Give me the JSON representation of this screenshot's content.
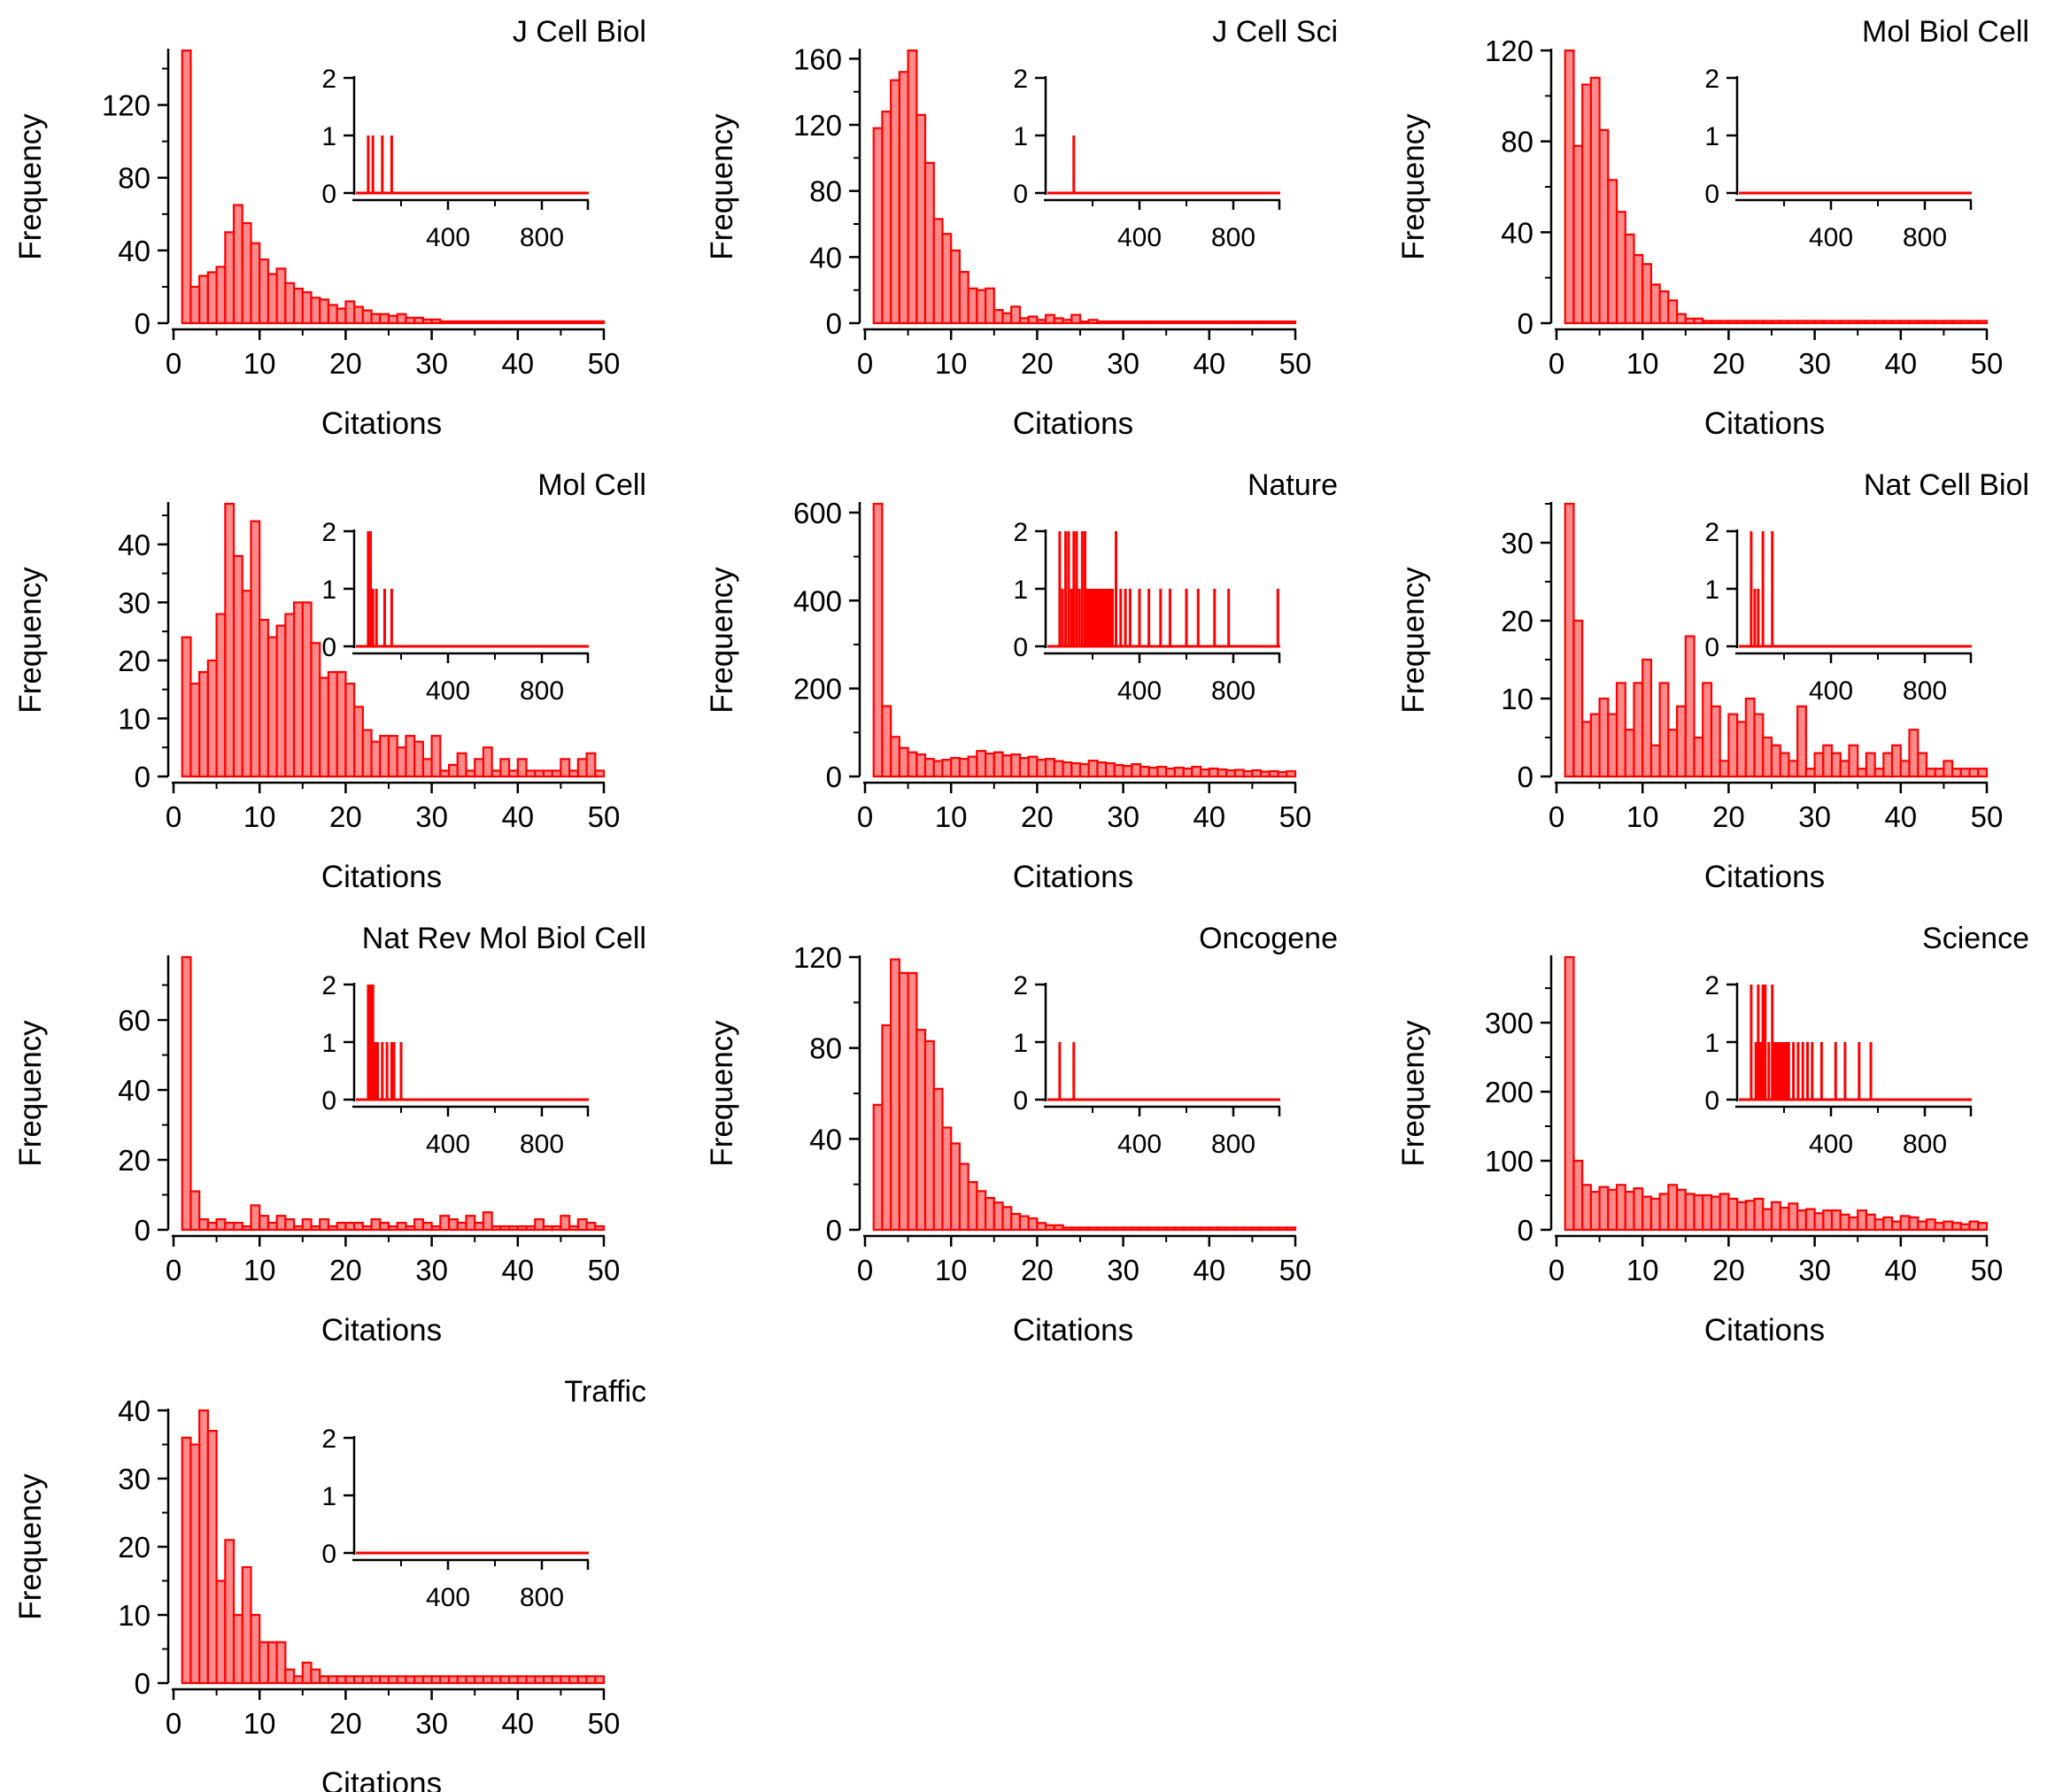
{
  "colors": {
    "bar_fill": "#ff8a8a",
    "bar_stroke": "#ff0000",
    "axis": "#000000"
  },
  "chart_data": [
    {
      "type": "bar",
      "title": "J Cell Biol",
      "xlabel": "Citations",
      "ylabel": "Frequency",
      "xlim": [
        0,
        50
      ],
      "ylim": [
        0,
        150
      ],
      "yticks": [
        0,
        40,
        80,
        120
      ],
      "xticks": [
        0,
        10,
        20,
        30,
        40,
        50
      ],
      "bin_start": 1,
      "bin_width": 1,
      "values": [
        150,
        20,
        26,
        28,
        31,
        50,
        65,
        55,
        44,
        35,
        27,
        30,
        22,
        19,
        17,
        14,
        13,
        10,
        8,
        12,
        9,
        7,
        5,
        5,
        4,
        5,
        3,
        3,
        2,
        2,
        1,
        1,
        1,
        1,
        1,
        1,
        1,
        1,
        1,
        1,
        1,
        1,
        1,
        1,
        1,
        1,
        1,
        1,
        1
      ],
      "inset": {
        "ylim": [
          0,
          2
        ],
        "yticks": [
          0,
          1,
          2
        ],
        "xlim": [
          0,
          1000
        ],
        "xticks": [
          400,
          800
        ],
        "xminor": [
          200,
          600
        ],
        "spikes": [
          [
            60,
            1
          ],
          [
            80,
            1
          ],
          [
            120,
            1
          ],
          [
            160,
            1
          ]
        ]
      }
    },
    {
      "type": "bar",
      "title": "J Cell Sci",
      "xlabel": "Citations",
      "ylabel": "Frequency",
      "xlim": [
        0,
        50
      ],
      "ylim": [
        0,
        165
      ],
      "yticks": [
        0,
        40,
        80,
        120,
        160
      ],
      "xticks": [
        0,
        10,
        20,
        30,
        40,
        50
      ],
      "bin_start": 1,
      "bin_width": 1,
      "values": [
        118,
        128,
        147,
        152,
        165,
        126,
        97,
        63,
        54,
        44,
        31,
        21,
        20,
        21,
        8,
        6,
        10,
        3,
        4,
        2,
        5,
        3,
        2,
        5,
        1,
        2,
        1,
        1,
        1,
        1,
        1,
        1,
        1,
        1,
        1,
        1,
        1,
        1,
        1,
        1,
        1,
        1,
        1,
        1,
        1,
        1,
        1,
        1,
        1
      ],
      "inset": {
        "ylim": [
          0,
          2
        ],
        "yticks": [
          0,
          1,
          2
        ],
        "xlim": [
          0,
          1000
        ],
        "xticks": [
          400,
          800
        ],
        "xminor": [
          200,
          600
        ],
        "spikes": [
          [
            120,
            1
          ]
        ]
      }
    },
    {
      "type": "bar",
      "title": "Mol Biol Cell",
      "xlabel": "Citations",
      "ylabel": "Frequency",
      "xlim": [
        0,
        50
      ],
      "ylim": [
        0,
        120
      ],
      "yticks": [
        0,
        40,
        80,
        120
      ],
      "xticks": [
        0,
        10,
        20,
        30,
        40,
        50
      ],
      "bin_start": 1,
      "bin_width": 1,
      "values": [
        120,
        78,
        105,
        108,
        85,
        63,
        49,
        39,
        30,
        26,
        17,
        14,
        10,
        4,
        2,
        2,
        1,
        1,
        1,
        1,
        1,
        1,
        1,
        1,
        1,
        1,
        1,
        1,
        1,
        1,
        1,
        1,
        1,
        1,
        1,
        1,
        1,
        1,
        1,
        1,
        1,
        1,
        1,
        1,
        1,
        1,
        1,
        1,
        1
      ],
      "inset": {
        "ylim": [
          0,
          2
        ],
        "yticks": [
          0,
          1,
          2
        ],
        "xlim": [
          0,
          1000
        ],
        "xticks": [
          400,
          800
        ],
        "xminor": [
          200,
          600
        ],
        "spikes": []
      }
    },
    {
      "type": "bar",
      "title": "Mol Cell",
      "xlabel": "Citations",
      "ylabel": "Frequency",
      "xlim": [
        0,
        50
      ],
      "ylim": [
        0,
        47
      ],
      "yticks": [
        0,
        10,
        20,
        30,
        40
      ],
      "xticks": [
        0,
        10,
        20,
        30,
        40,
        50
      ],
      "bin_start": 1,
      "bin_width": 1,
      "values": [
        24,
        16,
        18,
        20,
        28,
        47,
        38,
        32,
        44,
        27,
        24,
        26,
        28,
        30,
        30,
        23,
        17,
        18,
        18,
        16,
        12,
        8,
        6,
        7,
        7,
        5,
        7,
        6,
        3,
        7,
        1,
        2,
        4,
        1,
        3,
        5,
        1,
        3,
        1,
        3,
        1,
        1,
        1,
        1,
        3,
        1,
        3,
        4,
        1
      ],
      "inset": {
        "ylim": [
          0,
          2
        ],
        "yticks": [
          0,
          1,
          2
        ],
        "xlim": [
          0,
          1000
        ],
        "xticks": [
          400,
          800
        ],
        "xminor": [
          200,
          600
        ],
        "spikes": [
          [
            60,
            2
          ],
          [
            70,
            2
          ],
          [
            80,
            1
          ],
          [
            95,
            1
          ],
          [
            130,
            1
          ],
          [
            160,
            1
          ]
        ]
      }
    },
    {
      "type": "bar",
      "title": "Nature",
      "xlabel": "Citations",
      "ylabel": "Frequency",
      "xlim": [
        0,
        50
      ],
      "ylim": [
        0,
        620
      ],
      "yticks": [
        0,
        200,
        400,
        600
      ],
      "xticks": [
        0,
        10,
        20,
        30,
        40,
        50
      ],
      "bin_start": 1,
      "bin_width": 1,
      "values": [
        620,
        160,
        90,
        65,
        55,
        50,
        40,
        35,
        38,
        42,
        40,
        45,
        58,
        52,
        55,
        48,
        50,
        42,
        45,
        38,
        40,
        35,
        32,
        30,
        28,
        36,
        32,
        30,
        26,
        24,
        28,
        22,
        20,
        22,
        18,
        20,
        18,
        22,
        16,
        18,
        16,
        14,
        15,
        12,
        14,
        11,
        12,
        10,
        12
      ],
      "inset": {
        "ylim": [
          0,
          2
        ],
        "yticks": [
          0,
          1,
          2
        ],
        "xlim": [
          0,
          1000
        ],
        "xticks": [
          400,
          800
        ],
        "xminor": [
          200,
          600
        ],
        "spikes": [
          [
            60,
            2
          ],
          [
            72,
            1
          ],
          [
            85,
            2
          ],
          [
            98,
            2
          ],
          [
            110,
            1
          ],
          [
            120,
            2
          ],
          [
            132,
            2
          ],
          [
            144,
            1
          ],
          [
            156,
            2
          ],
          [
            168,
            2
          ],
          [
            175,
            1
          ],
          [
            185,
            1
          ],
          [
            195,
            1
          ],
          [
            205,
            1
          ],
          [
            215,
            1
          ],
          [
            225,
            1
          ],
          [
            235,
            1
          ],
          [
            245,
            1
          ],
          [
            255,
            1
          ],
          [
            265,
            1
          ],
          [
            275,
            1
          ],
          [
            285,
            1
          ],
          [
            300,
            2
          ],
          [
            320,
            1
          ],
          [
            340,
            1
          ],
          [
            360,
            1
          ],
          [
            400,
            1
          ],
          [
            440,
            1
          ],
          [
            490,
            1
          ],
          [
            530,
            1
          ],
          [
            600,
            1
          ],
          [
            650,
            1
          ],
          [
            720,
            1
          ],
          [
            780,
            1
          ],
          [
            990,
            1
          ]
        ]
      }
    },
    {
      "type": "bar",
      "title": "Nat Cell Biol",
      "xlabel": "Citations",
      "ylabel": "Frequency",
      "xlim": [
        0,
        50
      ],
      "ylim": [
        0,
        35
      ],
      "yticks": [
        0,
        10,
        20,
        30
      ],
      "xticks": [
        0,
        10,
        20,
        30,
        40,
        50
      ],
      "bin_start": 1,
      "bin_width": 1,
      "values": [
        35,
        20,
        7,
        8,
        10,
        8,
        12,
        6,
        12,
        15,
        4,
        12,
        6,
        9,
        18,
        5,
        12,
        9,
        2,
        8,
        7,
        10,
        8,
        5,
        4,
        3,
        2,
        9,
        1,
        3,
        4,
        3,
        2,
        4,
        1,
        3,
        1,
        3,
        4,
        2,
        6,
        3,
        1,
        1,
        2,
        1,
        1,
        1,
        1
      ],
      "inset": {
        "ylim": [
          0,
          2
        ],
        "yticks": [
          0,
          1,
          2
        ],
        "xlim": [
          0,
          1000
        ],
        "xticks": [
          400,
          800
        ],
        "xminor": [
          200,
          600
        ],
        "spikes": [
          [
            60,
            2
          ],
          [
            75,
            1
          ],
          [
            90,
            1
          ],
          [
            110,
            2
          ],
          [
            150,
            2
          ]
        ]
      }
    },
    {
      "type": "bar",
      "title": "Nat Rev Mol Biol Cell",
      "xlabel": "Citations",
      "ylabel": "Frequency",
      "xlim": [
        0,
        50
      ],
      "ylim": [
        0,
        78
      ],
      "yticks": [
        0,
        20,
        40,
        60
      ],
      "xticks": [
        0,
        10,
        20,
        30,
        40,
        50
      ],
      "bin_start": 1,
      "bin_width": 1,
      "values": [
        78,
        11,
        3,
        2,
        3,
        2,
        2,
        1,
        7,
        4,
        2,
        4,
        3,
        1,
        3,
        1,
        3,
        1,
        2,
        2,
        2,
        1,
        3,
        2,
        1,
        2,
        1,
        3,
        2,
        1,
        4,
        3,
        2,
        4,
        2,
        5,
        1,
        1,
        1,
        1,
        1,
        3,
        1,
        1,
        4,
        1,
        3,
        2,
        1
      ],
      "inset": {
        "ylim": [
          0,
          2
        ],
        "yticks": [
          0,
          1,
          2
        ],
        "xlim": [
          0,
          1000
        ],
        "xticks": [
          400,
          800
        ],
        "xminor": [
          200,
          600
        ],
        "spikes": [
          [
            60,
            2
          ],
          [
            70,
            2
          ],
          [
            80,
            2
          ],
          [
            90,
            1
          ],
          [
            100,
            1
          ],
          [
            120,
            1
          ],
          [
            140,
            1
          ],
          [
            160,
            1
          ],
          [
            170,
            1
          ],
          [
            200,
            1
          ]
        ]
      }
    },
    {
      "type": "bar",
      "title": "Oncogene",
      "xlabel": "Citations",
      "ylabel": "Frequency",
      "xlim": [
        0,
        50
      ],
      "ylim": [
        0,
        120
      ],
      "yticks": [
        0,
        40,
        80,
        120
      ],
      "xticks": [
        0,
        10,
        20,
        30,
        40,
        50
      ],
      "bin_start": 1,
      "bin_width": 1,
      "values": [
        55,
        90,
        119,
        113,
        113,
        88,
        83,
        62,
        45,
        38,
        29,
        21,
        17,
        14,
        12,
        10,
        7,
        6,
        5,
        3,
        2,
        2,
        1,
        1,
        1,
        1,
        1,
        1,
        1,
        1,
        1,
        1,
        1,
        1,
        1,
        1,
        1,
        1,
        1,
        1,
        1,
        1,
        1,
        1,
        1,
        1,
        1,
        1,
        1
      ],
      "inset": {
        "ylim": [
          0,
          2
        ],
        "yticks": [
          0,
          1,
          2
        ],
        "xlim": [
          0,
          1000
        ],
        "xticks": [
          400,
          800
        ],
        "xminor": [
          200,
          600
        ],
        "spikes": [
          [
            60,
            1
          ],
          [
            120,
            1
          ]
        ]
      }
    },
    {
      "type": "bar",
      "title": "Science",
      "xlabel": "Citations",
      "ylabel": "Frequency",
      "xlim": [
        0,
        50
      ],
      "ylim": [
        0,
        395
      ],
      "yticks": [
        0,
        100,
        200,
        300
      ],
      "xticks": [
        0,
        10,
        20,
        30,
        40,
        50
      ],
      "bin_start": 1,
      "bin_width": 1,
      "values": [
        395,
        100,
        65,
        55,
        62,
        58,
        65,
        55,
        60,
        48,
        45,
        52,
        65,
        58,
        52,
        50,
        50,
        48,
        52,
        45,
        40,
        42,
        45,
        30,
        40,
        32,
        38,
        28,
        30,
        24,
        28,
        28,
        22,
        18,
        28,
        22,
        15,
        18,
        12,
        20,
        18,
        12,
        15,
        10,
        12,
        10,
        8,
        12,
        10
      ],
      "inset": {
        "ylim": [
          0,
          2
        ],
        "yticks": [
          0,
          1,
          2
        ],
        "xlim": [
          0,
          1000
        ],
        "xticks": [
          400,
          800
        ],
        "xminor": [
          200,
          600
        ],
        "spikes": [
          [
            60,
            2
          ],
          [
            80,
            1
          ],
          [
            90,
            2
          ],
          [
            100,
            1
          ],
          [
            110,
            2
          ],
          [
            120,
            2
          ],
          [
            135,
            1
          ],
          [
            150,
            2
          ],
          [
            160,
            1
          ],
          [
            170,
            1
          ],
          [
            180,
            1
          ],
          [
            190,
            1
          ],
          [
            200,
            1
          ],
          [
            210,
            1
          ],
          [
            220,
            1
          ],
          [
            240,
            1
          ],
          [
            260,
            1
          ],
          [
            280,
            1
          ],
          [
            300,
            1
          ],
          [
            320,
            1
          ],
          [
            360,
            1
          ],
          [
            420,
            1
          ],
          [
            460,
            1
          ],
          [
            520,
            1
          ],
          [
            570,
            1
          ]
        ]
      }
    },
    {
      "type": "bar",
      "title": "Traffic",
      "xlabel": "Citations",
      "ylabel": "Frequency",
      "xlim": [
        0,
        50
      ],
      "ylim": [
        0,
        40
      ],
      "yticks": [
        0,
        10,
        20,
        30,
        40
      ],
      "xticks": [
        0,
        10,
        20,
        30,
        40,
        50
      ],
      "bin_start": 1,
      "bin_width": 1,
      "values": [
        36,
        35,
        40,
        37,
        15,
        21,
        10,
        17,
        10,
        6,
        6,
        6,
        2,
        1,
        3,
        2,
        1,
        1,
        1,
        1,
        1,
        1,
        1,
        1,
        1,
        1,
        1,
        1,
        1,
        1,
        1,
        1,
        1,
        1,
        1,
        1,
        1,
        1,
        1,
        1,
        1,
        1,
        1,
        1,
        1,
        1,
        1,
        1,
        1
      ],
      "inset": {
        "ylim": [
          0,
          2
        ],
        "yticks": [
          0,
          1,
          2
        ],
        "xlim": [
          0,
          1000
        ],
        "xticks": [
          400,
          800
        ],
        "xminor": [
          200,
          600
        ],
        "spikes": []
      }
    }
  ]
}
